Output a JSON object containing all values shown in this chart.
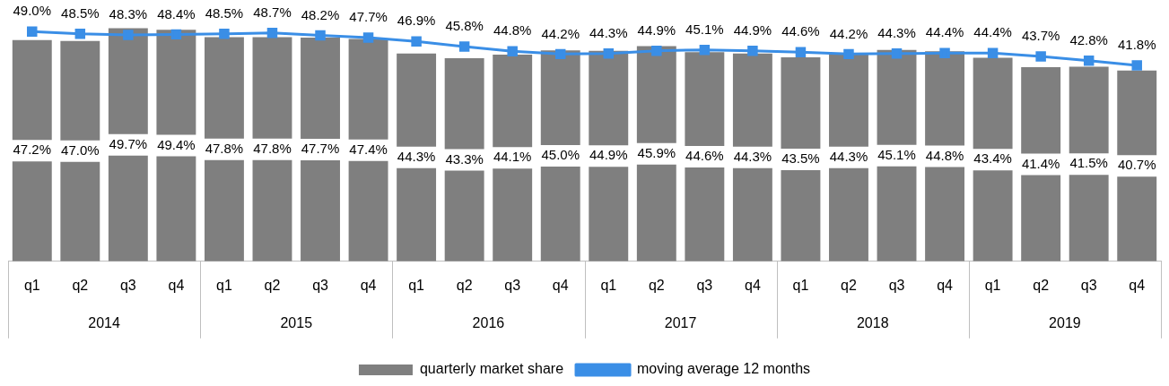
{
  "chart_data": {
    "type": "bar",
    "categories": [
      "q1",
      "q2",
      "q3",
      "q4",
      "q1",
      "q2",
      "q3",
      "q4",
      "q1",
      "q2",
      "q3",
      "q4",
      "q1",
      "q2",
      "q3",
      "q4",
      "q1",
      "q2",
      "q3",
      "q4",
      "q1",
      "q2",
      "q3",
      "q4"
    ],
    "series": [
      {
        "name": "quarterly market share",
        "color": "#7f7f7f",
        "values": [
          47.2,
          47.0,
          49.7,
          49.4,
          47.8,
          47.8,
          47.7,
          47.4,
          44.3,
          43.3,
          44.1,
          45.0,
          44.9,
          45.9,
          44.6,
          44.3,
          43.5,
          44.3,
          45.1,
          44.8,
          43.4,
          41.4,
          41.5,
          40.7
        ],
        "value_labels": [
          "47.2%",
          "47.0%",
          "49.7%",
          "49.4%",
          "47.8%",
          "47.8%",
          "47.7%",
          "47.4%",
          "44.3%",
          "43.3%",
          "44.1%",
          "45.0%",
          "44.9%",
          "45.9%",
          "44.6%",
          "44.3%",
          "43.5%",
          "44.3%",
          "45.1%",
          "44.8%",
          "43.4%",
          "41.4%",
          "41.5%",
          "40.7%"
        ]
      },
      {
        "name": "moving average 12 months",
        "type": "line",
        "color": "#3a8ee6",
        "marker": "square",
        "values": [
          49.0,
          48.5,
          48.3,
          48.4,
          48.5,
          48.7,
          48.2,
          47.7,
          46.9,
          45.8,
          44.8,
          44.2,
          44.3,
          44.9,
          45.1,
          44.9,
          44.6,
          44.2,
          44.3,
          44.4,
          44.4,
          43.7,
          42.8,
          41.8
        ],
        "value_labels": [
          "49.0%",
          "48.5%",
          "48.3%",
          "48.4%",
          "48.5%",
          "48.7%",
          "48.2%",
          "47.7%",
          "46.9%",
          "45.8%",
          "44.8%",
          "44.2%",
          "44.3%",
          "44.9%",
          "45.1%",
          "44.9%",
          "44.6%",
          "44.2%",
          "44.3%",
          "44.4%",
          "44.4%",
          "43.7%",
          "42.8%",
          "41.8%"
        ]
      }
    ],
    "annotations": [
      "2014",
      "2015",
      "2016",
      "2017",
      "2018",
      "2019"
    ],
    "legend": "bottom",
    "grid": false
  }
}
